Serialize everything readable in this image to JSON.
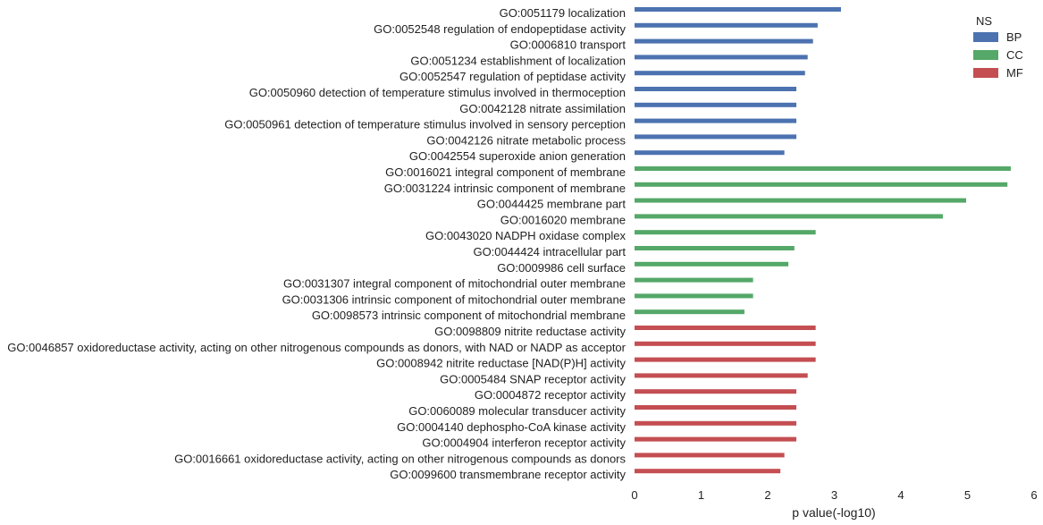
{
  "chart_data": {
    "type": "bar",
    "orientation": "horizontal",
    "xlabel": "p value(-log10)",
    "xlim": [
      0,
      6
    ],
    "xticks": [
      0,
      1,
      2,
      3,
      4,
      5,
      6
    ],
    "grid": false,
    "legend": {
      "title": "NS",
      "placement": "top-right",
      "entries": [
        {
          "name": "BP",
          "color": "#4c72b0"
        },
        {
          "name": "CC",
          "color": "#55a868"
        },
        {
          "name": "MF",
          "color": "#c44e52"
        }
      ]
    },
    "categories": [
      {
        "label": "GO:0051179 localization",
        "value": 3.1,
        "ns": "BP"
      },
      {
        "label": "GO:0052548 regulation of endopeptidase activity",
        "value": 2.75,
        "ns": "BP"
      },
      {
        "label": "GO:0006810 transport",
        "value": 2.68,
        "ns": "BP"
      },
      {
        "label": "GO:0051234 establishment of localization",
        "value": 2.6,
        "ns": "BP"
      },
      {
        "label": "GO:0052547 regulation of peptidase activity",
        "value": 2.56,
        "ns": "BP"
      },
      {
        "label": "GO:0050960 detection of temperature stimulus involved in thermoception",
        "value": 2.43,
        "ns": "BP"
      },
      {
        "label": "GO:0042128 nitrate assimilation",
        "value": 2.43,
        "ns": "BP"
      },
      {
        "label": "GO:0050961 detection of temperature stimulus involved in sensory perception",
        "value": 2.43,
        "ns": "BP"
      },
      {
        "label": "GO:0042126 nitrate metabolic process",
        "value": 2.43,
        "ns": "BP"
      },
      {
        "label": "GO:0042554 superoxide anion generation",
        "value": 2.25,
        "ns": "BP"
      },
      {
        "label": "GO:0016021 integral component of membrane",
        "value": 5.65,
        "ns": "CC"
      },
      {
        "label": "GO:0031224 intrinsic component of membrane",
        "value": 5.6,
        "ns": "CC"
      },
      {
        "label": "GO:0044425 membrane part",
        "value": 4.98,
        "ns": "CC"
      },
      {
        "label": "GO:0016020 membrane",
        "value": 4.63,
        "ns": "CC"
      },
      {
        "label": "GO:0043020 NADPH oxidase complex",
        "value": 2.72,
        "ns": "CC"
      },
      {
        "label": "GO:0044424 intracellular part",
        "value": 2.4,
        "ns": "CC"
      },
      {
        "label": "GO:0009986 cell surface",
        "value": 2.31,
        "ns": "CC"
      },
      {
        "label": "GO:0031307 integral component of mitochondrial outer membrane",
        "value": 1.78,
        "ns": "CC"
      },
      {
        "label": "GO:0031306 intrinsic component of mitochondrial outer membrane",
        "value": 1.78,
        "ns": "CC"
      },
      {
        "label": "GO:0098573 intrinsic component of mitochondrial membrane",
        "value": 1.65,
        "ns": "CC"
      },
      {
        "label": "GO:0098809 nitrite reductase activity",
        "value": 2.72,
        "ns": "MF"
      },
      {
        "label": "GO:0046857 oxidoreductase activity, acting on other nitrogenous compounds as donors, with NAD or NADP as acceptor",
        "value": 2.72,
        "ns": "MF"
      },
      {
        "label": "GO:0008942 nitrite reductase [NAD(P)H] activity",
        "value": 2.72,
        "ns": "MF"
      },
      {
        "label": "GO:0005484 SNAP receptor activity",
        "value": 2.6,
        "ns": "MF"
      },
      {
        "label": "GO:0004872 receptor activity",
        "value": 2.43,
        "ns": "MF"
      },
      {
        "label": "GO:0060089 molecular transducer activity",
        "value": 2.43,
        "ns": "MF"
      },
      {
        "label": "GO:0004140 dephospho-CoA kinase activity",
        "value": 2.43,
        "ns": "MF"
      },
      {
        "label": "GO:0004904 interferon receptor activity",
        "value": 2.43,
        "ns": "MF"
      },
      {
        "label": "GO:0016661 oxidoreductase activity, acting on other nitrogenous compounds as donors",
        "value": 2.25,
        "ns": "MF"
      },
      {
        "label": "GO:0099600 transmembrane receptor activity",
        "value": 2.19,
        "ns": "MF"
      }
    ]
  }
}
